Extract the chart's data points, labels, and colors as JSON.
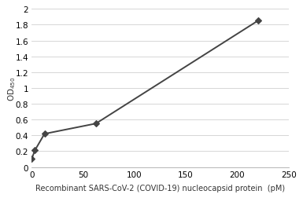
{
  "x": [
    0,
    3.125,
    12.5,
    62.5,
    220
  ],
  "y": [
    0.1,
    0.21,
    0.42,
    0.55,
    1.85
  ],
  "line_color": "#444444",
  "marker_color": "#444444",
  "marker_style": "D",
  "marker_size": 4,
  "line_width": 1.4,
  "xlim": [
    0,
    250
  ],
  "ylim": [
    0,
    2.0
  ],
  "xticks": [
    0,
    50,
    100,
    150,
    200,
    250
  ],
  "yticks": [
    0,
    0.2,
    0.4,
    0.6,
    0.8,
    1.0,
    1.2,
    1.4,
    1.6,
    1.8,
    2.0
  ],
  "xlabel": "Recombinant SARS-CoV-2 (COVID-19) nucleocapsid protein  (pM)",
  "ylabel": "OD₄₅₀",
  "grid_color": "#d0d0d0",
  "bg_color": "#ffffff",
  "xlabel_fontsize": 7.0,
  "ylabel_fontsize": 7.5,
  "tick_fontsize": 7.5,
  "top_spine": false,
  "right_spine": false
}
